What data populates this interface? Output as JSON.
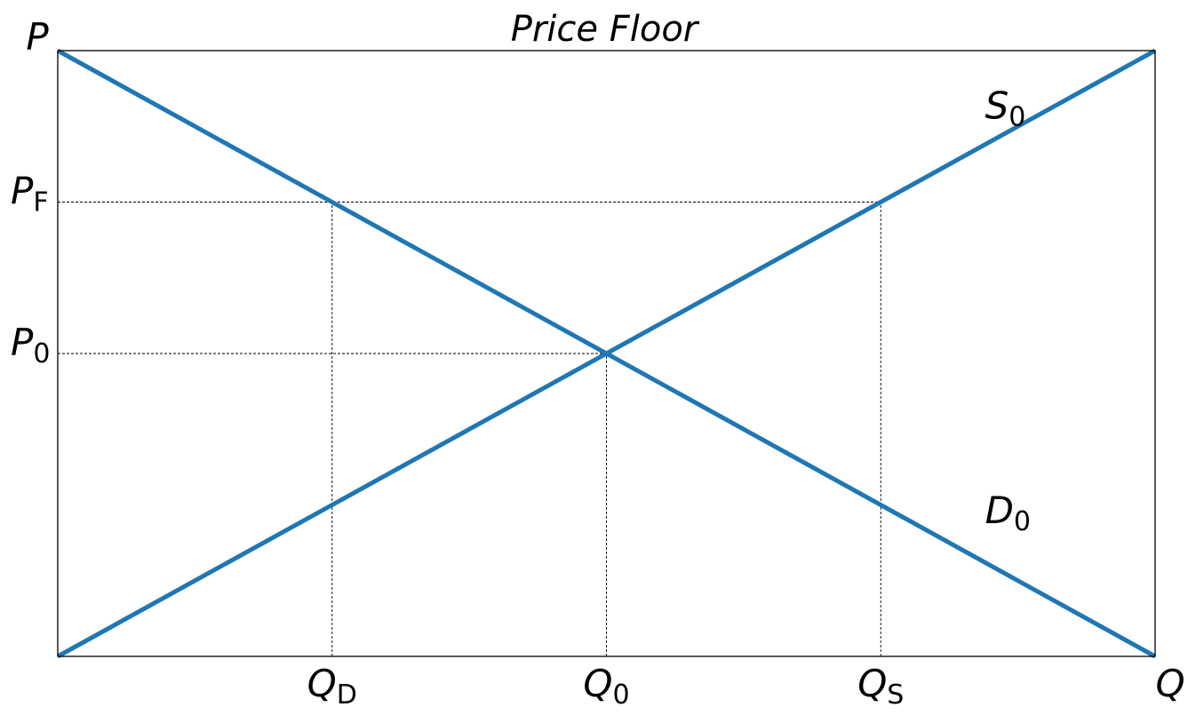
{
  "chart_data": {
    "type": "line",
    "title": "Price Floor",
    "xlabel": "Q",
    "ylabel": "P",
    "xlim": [
      0,
      4
    ],
    "ylim": [
      0,
      4
    ],
    "series": [
      {
        "name": "S",
        "name_sub": "0",
        "x": [
          0,
          4
        ],
        "y": [
          0,
          4
        ],
        "label_at": [
          3.38,
          3.55
        ]
      },
      {
        "name": "D",
        "name_sub": "0",
        "x": [
          0,
          4
        ],
        "y": [
          4,
          0
        ],
        "label_at": [
          3.38,
          0.88
        ]
      }
    ],
    "x_ticks": [
      {
        "value": 1,
        "main": "Q",
        "sub": "D"
      },
      {
        "value": 2,
        "main": "Q",
        "sub": "0"
      },
      {
        "value": 3,
        "main": "Q",
        "sub": "S"
      }
    ],
    "y_ticks": [
      {
        "value": 3,
        "main": "P",
        "sub": "F"
      },
      {
        "value": 2,
        "main": "P",
        "sub": "0"
      }
    ],
    "guides": [
      {
        "y": 3,
        "x_from": 0,
        "x_to": 3
      },
      {
        "y": 2,
        "x_from": 0,
        "x_to": 2
      },
      {
        "x": 1,
        "y_from": 0,
        "y_to": 3
      },
      {
        "x": 2,
        "y_from": 0,
        "y_to": 2
      },
      {
        "x": 3,
        "y_from": 0,
        "y_to": 3
      }
    ],
    "line_color": "#1f77b4",
    "grid": false
  }
}
